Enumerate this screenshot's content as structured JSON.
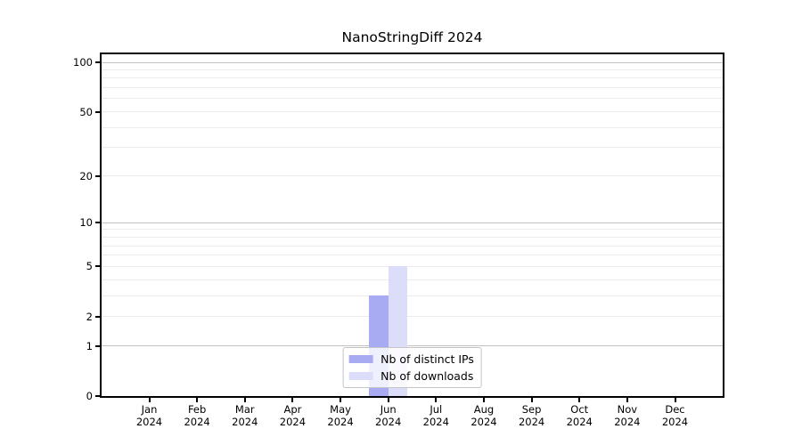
{
  "figure": {
    "background": "#ffffff"
  },
  "chart_data": {
    "type": "bar",
    "title": "NanoStringDiff 2024",
    "categories": [
      "Jan 2024",
      "Feb 2024",
      "Mar 2024",
      "Apr 2024",
      "May 2024",
      "Jun 2024",
      "Jul 2024",
      "Aug 2024",
      "Sep 2024",
      "Oct 2024",
      "Nov 2024",
      "Dec 2024"
    ],
    "series": [
      {
        "name": "Nb of distinct IPs",
        "color": "#a8abf2",
        "values": [
          0,
          0,
          0,
          0,
          0,
          3,
          0,
          0,
          0,
          0,
          0,
          0
        ]
      },
      {
        "name": "Nb of downloads",
        "color": "#dcdef9",
        "values": [
          0,
          0,
          0,
          0,
          0,
          5,
          0,
          0,
          0,
          0,
          0,
          0
        ]
      }
    ],
    "xlabel": "",
    "ylabel": "",
    "ylim": [
      0,
      100
    ],
    "yscale": "log1p",
    "yticks": [
      0,
      1,
      2,
      5,
      10,
      20,
      50,
      100
    ],
    "grid": {
      "major_values": [
        1,
        10,
        100
      ],
      "minor_values": [
        2,
        3,
        4,
        5,
        6,
        7,
        8,
        9,
        20,
        30,
        40,
        50,
        60,
        70,
        80,
        90
      ],
      "major_color": "#c2c2c2",
      "minor_color": "#ececec"
    },
    "legend": {
      "position": "lower center",
      "entries": [
        "Nb of distinct IPs",
        "Nb of downloads"
      ]
    },
    "colors": {
      "axis": "#000000",
      "text": "#000000"
    }
  }
}
